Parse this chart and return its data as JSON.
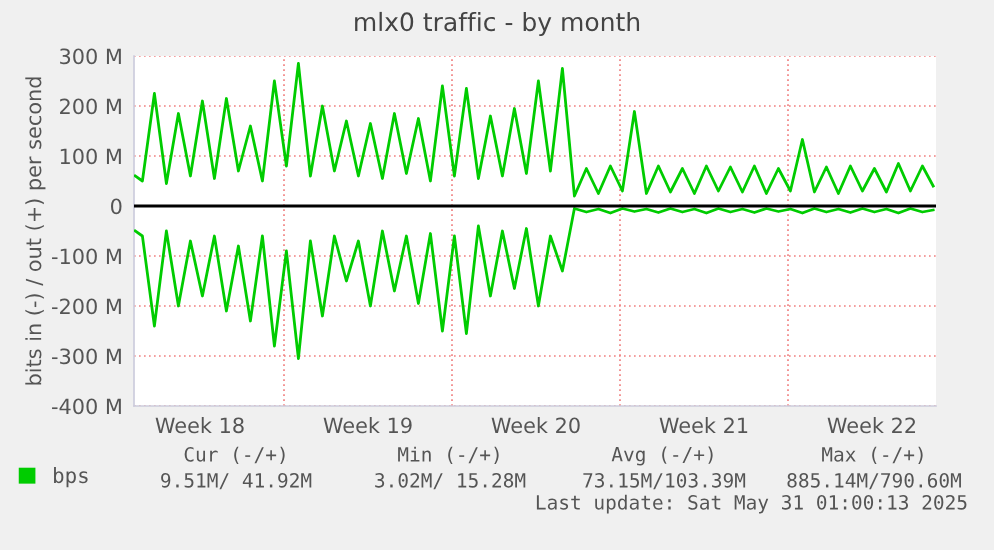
{
  "chart_data": {
    "type": "line",
    "title": "mlx0 traffic - by month",
    "ylabel": "bits in (-) / out (+) per second",
    "x": [
      "2025-04-28T19:12",
      "2025-04-29T02:24",
      "2025-04-29T14:24",
      "2025-04-30T02:24",
      "2025-04-30T14:24",
      "2025-05-01T02:24",
      "2025-05-01T14:24",
      "2025-05-02T02:24",
      "2025-05-02T14:24",
      "2025-05-03T02:24",
      "2025-05-03T14:24",
      "2025-05-04T02:24",
      "2025-05-04T14:24",
      "2025-05-05T02:24",
      "2025-05-05T14:24",
      "2025-05-06T02:24",
      "2025-05-06T14:24",
      "2025-05-07T02:24",
      "2025-05-07T14:24",
      "2025-05-08T02:24",
      "2025-05-08T14:24",
      "2025-05-09T02:24",
      "2025-05-09T14:24",
      "2025-05-10T02:24",
      "2025-05-10T14:24",
      "2025-05-11T02:24",
      "2025-05-11T14:24",
      "2025-05-12T02:24",
      "2025-05-12T14:24",
      "2025-05-13T02:24",
      "2025-05-13T14:24",
      "2025-05-14T02:24",
      "2025-05-14T14:24",
      "2025-05-15T02:24",
      "2025-05-15T14:24",
      "2025-05-16T02:24",
      "2025-05-16T14:24",
      "2025-05-17T02:24",
      "2025-05-17T14:24",
      "2025-05-18T02:24",
      "2025-05-18T14:24",
      "2025-05-19T02:24",
      "2025-05-19T14:24",
      "2025-05-20T02:24",
      "2025-05-20T14:24",
      "2025-05-21T02:24",
      "2025-05-21T14:24",
      "2025-05-22T02:24",
      "2025-05-22T14:24",
      "2025-05-23T02:24",
      "2025-05-23T14:24",
      "2025-05-24T02:24",
      "2025-05-24T14:24",
      "2025-05-25T02:24",
      "2025-05-25T14:24",
      "2025-05-26T02:24",
      "2025-05-26T14:24",
      "2025-05-27T02:24",
      "2025-05-27T14:24",
      "2025-05-28T02:24",
      "2025-05-28T14:24",
      "2025-05-29T02:24",
      "2025-05-29T14:24",
      "2025-05-30T02:24",
      "2025-05-30T14:24",
      "2025-05-31T02:24",
      "2025-05-31T14:24",
      "2025-06-01T01:12"
    ],
    "series": [
      {
        "name": "bps",
        "color": "#00cc00",
        "values": [
          60,
          50,
          225,
          45,
          185,
          60,
          210,
          55,
          215,
          70,
          160,
          50,
          250,
          80,
          285,
          60,
          200,
          70,
          170,
          60,
          165,
          55,
          185,
          65,
          175,
          50,
          240,
          60,
          235,
          55,
          180,
          60,
          195,
          65,
          250,
          70,
          275,
          20,
          75,
          25,
          80,
          30,
          189,
          25,
          80,
          28,
          75,
          25,
          80,
          30,
          78,
          28,
          80,
          25,
          75,
          30,
          133,
          28,
          78,
          25,
          80,
          30,
          75,
          28,
          85,
          30,
          80,
          40
        ]
      },
      {
        "color": "#00cc00",
        "values": [
          -50,
          -60,
          -240,
          -50,
          -200,
          -70,
          -180,
          -60,
          -210,
          -80,
          -230,
          -60,
          -280,
          -90,
          -305,
          -70,
          -220,
          -60,
          -150,
          -70,
          -200,
          -50,
          -170,
          -60,
          -195,
          -55,
          -250,
          -60,
          -255,
          -40,
          -180,
          -50,
          -165,
          -45,
          -200,
          -60,
          -130,
          -5,
          -12,
          -6,
          -14,
          -5,
          -11,
          -6,
          -13,
          -5,
          -12,
          -6,
          -14,
          -5,
          -12,
          -6,
          -13,
          -5,
          -11,
          -6,
          -14,
          -5,
          -12,
          -6,
          -13,
          -5,
          -12,
          -6,
          -14,
          -5,
          -12,
          -8
        ]
      }
    ],
    "xlim": [
      "2025-04-28T18:00",
      "2025-06-01T04:00"
    ],
    "xticks": [
      {
        "value": "2025-05-01T12:00",
        "label": "Week 18"
      },
      {
        "value": "2025-05-05",
        "label": null
      },
      {
        "value": "2025-05-08T12:00",
        "label": "Week 19"
      },
      {
        "value": "2025-05-12",
        "label": null
      },
      {
        "value": "2025-05-15T12:00",
        "label": "Week 20"
      },
      {
        "value": "2025-05-19",
        "label": null
      },
      {
        "value": "2025-05-22T12:00",
        "label": "Week 21"
      },
      {
        "value": "2025-05-26",
        "label": null
      },
      {
        "value": "2025-05-29T12:00",
        "label": "Week 22"
      }
    ],
    "ylim": [
      -400,
      300
    ],
    "yticks": [
      {
        "value": 300,
        "label": "300 M"
      },
      {
        "value": 200,
        "label": "200 M"
      },
      {
        "value": 100,
        "label": "100 M"
      },
      0,
      {
        "value": -100,
        "label": "-100 M"
      },
      {
        "value": -200,
        "label": "-200 M"
      },
      {
        "value": -300,
        "label": "-300 M"
      },
      {
        "value": -400,
        "label": "-400 M"
      }
    ],
    "ref_lines": [
      {
        "axis": "y",
        "value": 0,
        "color": "#000000"
      }
    ],
    "grid": true,
    "legend": "bottom left",
    "annotations": [
      "Cur (-/+)",
      "9.51M/ 41.92M",
      "Min (-/+)",
      "3.02M/ 15.28M",
      "Avg (-/+)",
      "73.15M/103.39M",
      "Max (-/+)",
      "885.14M/790.60M",
      "Last update: Sat May 31 01:00:13 2025"
    ]
  }
}
